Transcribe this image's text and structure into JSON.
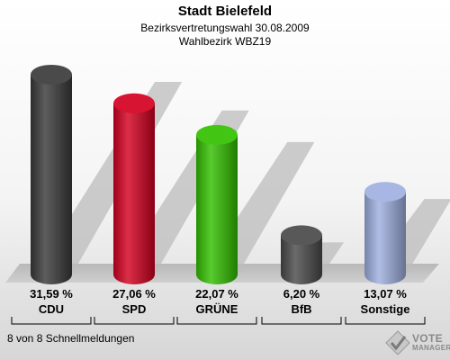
{
  "header": {
    "title": "Stadt Bielefeld",
    "subtitle": "Bezirksvertretungswahl 30.08.2009",
    "district": "Wahlbezirk WBZ19"
  },
  "footer": {
    "note": "8 von 8 Schnellmeldungen",
    "brand_line1": "VOTE",
    "brand_line2": "MANAGER"
  },
  "chart_data": {
    "type": "bar",
    "title": "Stadt Bielefeld",
    "categories": [
      "CDU",
      "SPD",
      "GRÜNE",
      "BfB",
      "Sonstige"
    ],
    "values": [
      31.59,
      27.06,
      22.07,
      6.2,
      13.07
    ],
    "value_labels": [
      "31,59 %",
      "27,06 %",
      "22,07 %",
      "6,20 %",
      "13,07 %"
    ],
    "colors": [
      "#3a3a3a",
      "#d40020",
      "#33c000",
      "#4a4a4a",
      "#9fb0e0"
    ],
    "ylim": [
      0,
      34
    ]
  }
}
